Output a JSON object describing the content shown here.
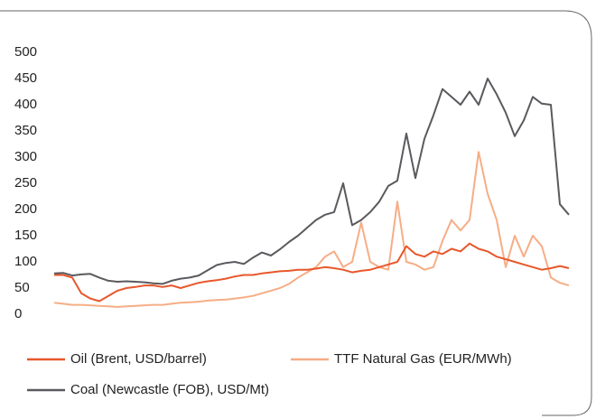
{
  "chart_data": {
    "type": "line",
    "ylim": [
      0,
      500
    ],
    "yticks": [
      0,
      50,
      100,
      150,
      200,
      250,
      300,
      350,
      400,
      450,
      500
    ],
    "grid": false,
    "series": [
      {
        "name": "Oil (Brent, USD/barrel)",
        "color": "#e8572a",
        "values": [
          75,
          75,
          70,
          40,
          30,
          25,
          35,
          45,
          50,
          52,
          55,
          55,
          52,
          55,
          50,
          55,
          60,
          63,
          65,
          68,
          72,
          75,
          75,
          78,
          80,
          82,
          83,
          85,
          85,
          87,
          90,
          88,
          85,
          80,
          83,
          85,
          90,
          95,
          100,
          130,
          115,
          110,
          120,
          115,
          125,
          120,
          135,
          125,
          120,
          110,
          105,
          100,
          95,
          90,
          85,
          88,
          92,
          88
        ]
      },
      {
        "name": "TTF Natural Gas (EUR/MWh)",
        "color": "#f6ad86",
        "values": [
          22,
          20,
          18,
          18,
          17,
          16,
          15,
          14,
          15,
          16,
          17,
          18,
          18,
          20,
          22,
          23,
          24,
          26,
          27,
          28,
          30,
          32,
          35,
          40,
          45,
          50,
          58,
          70,
          80,
          90,
          110,
          120,
          90,
          100,
          175,
          100,
          90,
          85,
          215,
          100,
          95,
          85,
          90,
          140,
          180,
          160,
          180,
          310,
          230,
          180,
          90,
          150,
          110,
          150,
          130,
          70,
          60,
          55
        ]
      },
      {
        "name": "Coal (Newcastle (FOB), USD/Mt)",
        "color": "#5a5a5e",
        "values": [
          78,
          79,
          74,
          76,
          77,
          70,
          64,
          62,
          63,
          62,
          61,
          59,
          58,
          64,
          68,
          70,
          74,
          84,
          94,
          98,
          100,
          96,
          108,
          118,
          112,
          124,
          138,
          150,
          165,
          180,
          190,
          195,
          250,
          170,
          180,
          195,
          215,
          245,
          255,
          345,
          260,
          335,
          380,
          430,
          415,
          400,
          425,
          400,
          450,
          420,
          385,
          340,
          370,
          415,
          402,
          400,
          210,
          190
        ]
      }
    ],
    "legend": "bottom"
  }
}
